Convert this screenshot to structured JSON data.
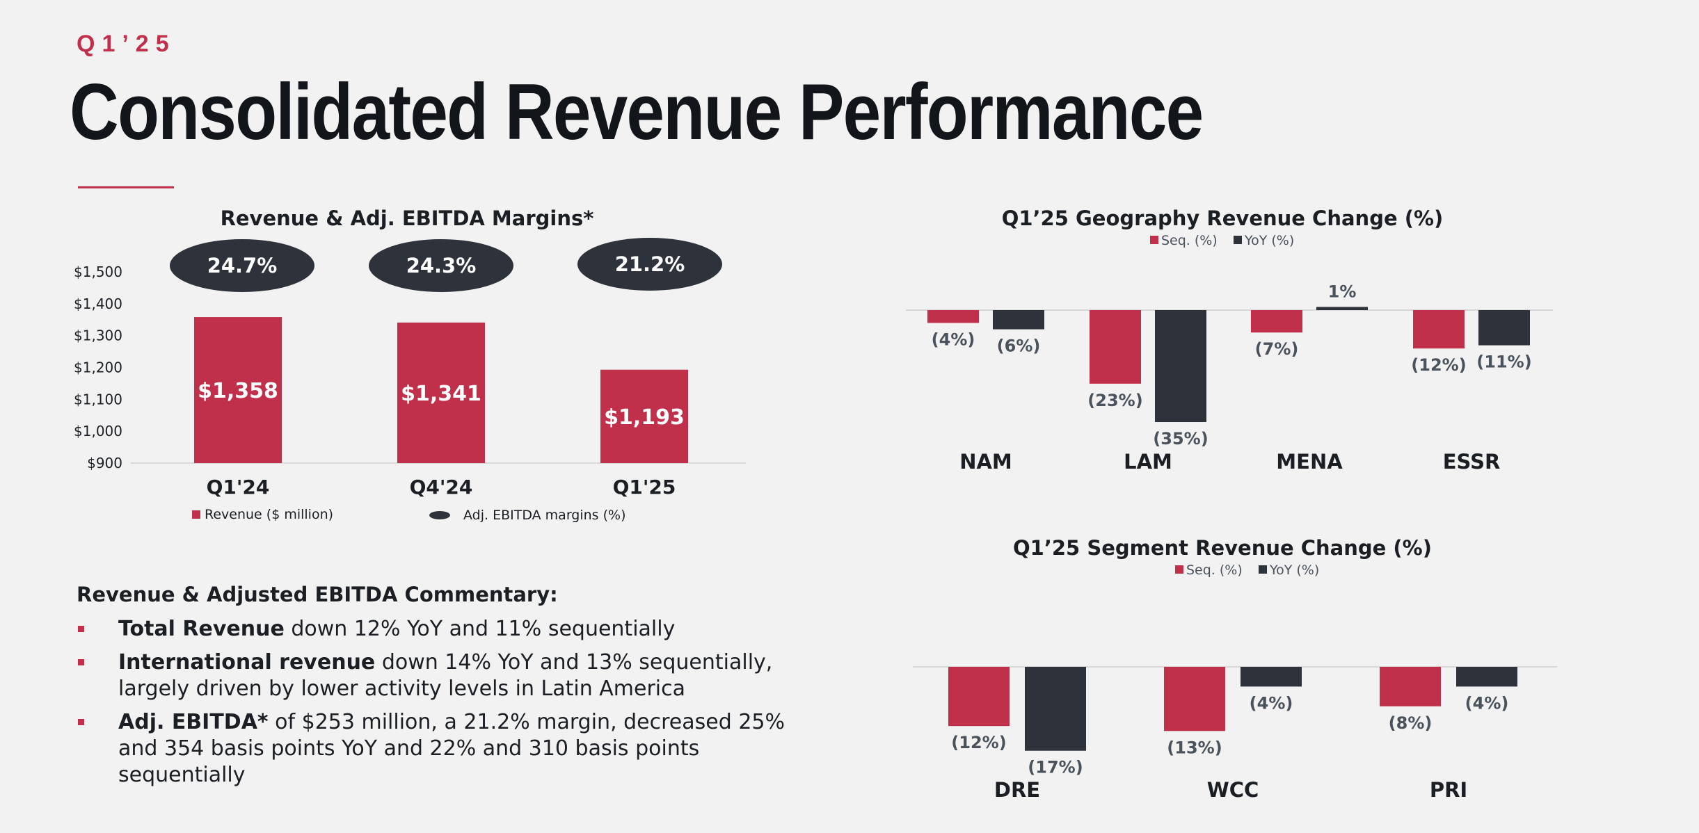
{
  "header": {
    "kicker": "Q1’25",
    "title": "Consolidated Revenue Performance"
  },
  "colors": {
    "accent": "#c0304a",
    "dark": "#2e333b",
    "label_gray": "#4a525c"
  },
  "commentary": {
    "heading": "Revenue & Adjusted EBITDA Commentary:",
    "bullets": [
      {
        "bold": "Total Revenue",
        "text": " down 12% YoY and 11% sequentially"
      },
      {
        "bold": "International revenue",
        "text": " down 14% YoY and 13% sequentially, largely driven by lower activity levels in Latin America"
      },
      {
        "bold": "Adj. EBITDA*",
        "text": " of $253 million, a 21.2% margin, decreased 25% and 354 basis points YoY and 22% and 310 basis points sequentially"
      }
    ]
  },
  "chart_data": [
    {
      "type": "bar",
      "title": "Revenue & Adj. EBITDA Margins*",
      "categories": [
        "Q1'24",
        "Q4'24",
        "Q1'25"
      ],
      "series": [
        {
          "name": "Revenue ($ million)",
          "values": [
            1358,
            1341,
            1193
          ],
          "labels": [
            "$1,358",
            "$1,341",
            "$1,193"
          ]
        },
        {
          "name": "Adj. EBITDA margins (%)",
          "values": [
            24.7,
            24.3,
            21.2
          ],
          "labels": [
            "24.7%",
            "24.3%",
            "21.2%"
          ]
        }
      ],
      "yticks": [
        "$1,500",
        "$1,400",
        "$1,300",
        "$1,200",
        "$1,100",
        "$1,000",
        "$900"
      ],
      "ylim": [
        900,
        1500
      ],
      "legend": "bottom"
    },
    {
      "type": "bar",
      "title": "Q1’25 Geography Revenue Change (%)",
      "categories": [
        "NAM",
        "LAM",
        "MENA",
        "ESSR"
      ],
      "series": [
        {
          "name": "Seq. (%)",
          "values": [
            -4,
            -23,
            -7,
            -12
          ],
          "labels": [
            "(4%)",
            "(23%)",
            "(7%)",
            "(12%)"
          ]
        },
        {
          "name": "YoY (%)",
          "values": [
            -6,
            -35,
            1,
            -11
          ],
          "labels": [
            "(6%)",
            "(35%)",
            "1%",
            "(11%)"
          ]
        }
      ],
      "legend": "top"
    },
    {
      "type": "bar",
      "title": "Q1’25 Segment Revenue Change (%)",
      "categories": [
        "DRE",
        "WCC",
        "PRI"
      ],
      "series": [
        {
          "name": "Seq. (%)",
          "values": [
            -12,
            -13,
            -8
          ],
          "labels": [
            "(12%)",
            "(13%)",
            "(8%)"
          ]
        },
        {
          "name": "YoY (%)",
          "values": [
            -17,
            -4,
            -4
          ],
          "labels": [
            "(17%)",
            "(4%)",
            "(4%)"
          ]
        }
      ],
      "legend": "top"
    }
  ]
}
